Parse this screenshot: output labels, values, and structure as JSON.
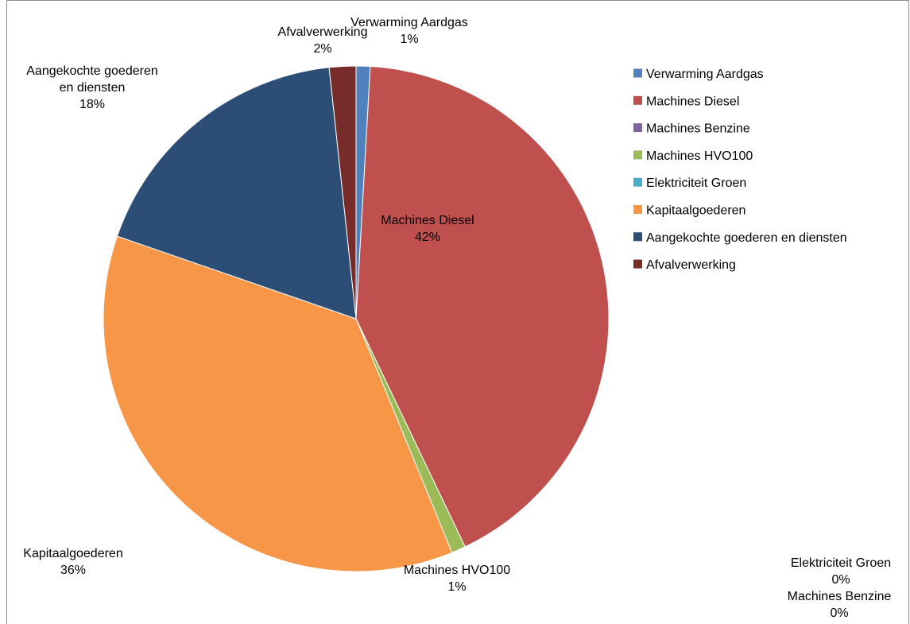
{
  "chart_data": {
    "type": "pie",
    "title": "",
    "slices": [
      {
        "name": "Verwarming Aardgas",
        "value": 0.9,
        "label": "1%",
        "color": "#4f81bd"
      },
      {
        "name": "Machines Diesel",
        "value": 42.0,
        "label": "42%",
        "color": "#c0504d"
      },
      {
        "name": "Machines Benzine",
        "value": 0.0,
        "label": "0%",
        "color": "#8064a2"
      },
      {
        "name": "Machines HVO100",
        "value": 0.9,
        "label": "1%",
        "color": "#9bbb59"
      },
      {
        "name": "Elektriciteit Groen",
        "value": 0.0,
        "label": "0%",
        "color": "#4bacc6"
      },
      {
        "name": "Kapitaalgoederen",
        "value": 36.5,
        "label": "36%",
        "color": "#f79646"
      },
      {
        "name": "Aangekochte goederen en diensten",
        "value": 18.0,
        "label": "18%",
        "color": "#2c4d75"
      },
      {
        "name": "Afvalverwerking",
        "value": 1.7,
        "label": "2%",
        "color": "#772c2a"
      }
    ],
    "legend_position": "right"
  }
}
